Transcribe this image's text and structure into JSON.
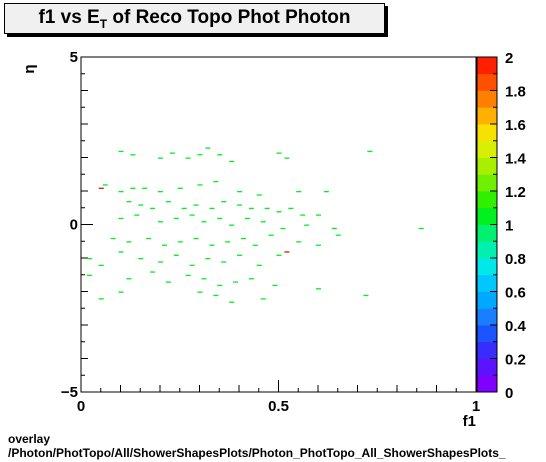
{
  "title": {
    "prefix": "f1 vs E",
    "sub": "T",
    "suffix": " of Reco Topo Phot Photon"
  },
  "footer": {
    "line1": "overlay",
    "line2": "/Photon/PhotTopo/All/ShowerShapesPlots/Photon_PhotTopo_All_ShowerShapesPlots_"
  },
  "chart_data": {
    "type": "heatmap",
    "title": "f1 vs E_T of Reco Topo Phot Photon",
    "xlabel": "f1",
    "ylabel": "η",
    "xlim": [
      0,
      1
    ],
    "ylim": [
      -5,
      5
    ],
    "x_ticks": [
      "0",
      "0.5",
      "1"
    ],
    "y_ticks": [
      "−5",
      "0",
      "5"
    ],
    "zlim": [
      0,
      2
    ],
    "z_ticks": [
      "0",
      "0.2",
      "0.4",
      "0.6",
      "0.8",
      "1",
      "1.2",
      "1.4",
      "1.6",
      "1.8",
      "2"
    ],
    "palette": [
      "#7f00ff",
      "#5a14ff",
      "#3a2bff",
      "#1a55ff",
      "#1a7fff",
      "#00a8ff",
      "#00c8ff",
      "#00e8e8",
      "#00f0b0",
      "#00f070",
      "#00f020",
      "#30f000",
      "#70f000",
      "#a8f000",
      "#d8f000",
      "#f8e000",
      "#ffb000",
      "#ff8000",
      "#ff5000",
      "#ff2000"
    ],
    "points": [
      {
        "x": 0.1,
        "y": 2.2,
        "z": 1
      },
      {
        "x": 0.13,
        "y": 2.1,
        "z": 1
      },
      {
        "x": 0.2,
        "y": 2.0,
        "z": 1
      },
      {
        "x": 0.23,
        "y": 2.15,
        "z": 1
      },
      {
        "x": 0.27,
        "y": 2.0,
        "z": 1
      },
      {
        "x": 0.3,
        "y": 2.1,
        "z": 1
      },
      {
        "x": 0.32,
        "y": 2.3,
        "z": 1
      },
      {
        "x": 0.35,
        "y": 2.1,
        "z": 1
      },
      {
        "x": 0.38,
        "y": 1.9,
        "z": 1
      },
      {
        "x": 0.5,
        "y": 2.15,
        "z": 1
      },
      {
        "x": 0.52,
        "y": 2.0,
        "z": 1
      },
      {
        "x": 0.73,
        "y": 2.2,
        "z": 1
      },
      {
        "x": 0.06,
        "y": 1.2,
        "z": 1
      },
      {
        "x": 0.1,
        "y": 1.0,
        "z": 1
      },
      {
        "x": 0.13,
        "y": 1.1,
        "z": 1
      },
      {
        "x": 0.16,
        "y": 1.1,
        "z": 1
      },
      {
        "x": 0.2,
        "y": 1.0,
        "z": 1
      },
      {
        "x": 0.25,
        "y": 1.1,
        "z": 1
      },
      {
        "x": 0.3,
        "y": 1.2,
        "z": 1
      },
      {
        "x": 0.34,
        "y": 1.3,
        "z": 1
      },
      {
        "x": 0.4,
        "y": 1.0,
        "z": 1
      },
      {
        "x": 0.45,
        "y": 0.9,
        "z": 1
      },
      {
        "x": 0.55,
        "y": 1.0,
        "z": 1
      },
      {
        "x": 0.62,
        "y": 1.0,
        "z": 1
      },
      {
        "x": 0.12,
        "y": 0.7,
        "z": 1
      },
      {
        "x": 0.15,
        "y": 0.6,
        "z": 1
      },
      {
        "x": 0.18,
        "y": 0.5,
        "z": 1
      },
      {
        "x": 0.22,
        "y": 0.7,
        "z": 1
      },
      {
        "x": 0.26,
        "y": 0.5,
        "z": 1
      },
      {
        "x": 0.29,
        "y": 0.6,
        "z": 1
      },
      {
        "x": 0.33,
        "y": 0.5,
        "z": 1
      },
      {
        "x": 0.36,
        "y": 0.7,
        "z": 1
      },
      {
        "x": 0.4,
        "y": 0.6,
        "z": 1
      },
      {
        "x": 0.43,
        "y": 0.5,
        "z": 1
      },
      {
        "x": 0.47,
        "y": 0.5,
        "z": 1
      },
      {
        "x": 0.5,
        "y": 0.4,
        "z": 1
      },
      {
        "x": 0.53,
        "y": 0.5,
        "z": 1
      },
      {
        "x": 0.56,
        "y": 0.3,
        "z": 1
      },
      {
        "x": 0.6,
        "y": 0.3,
        "z": 1
      },
      {
        "x": 0.1,
        "y": 0.2,
        "z": 1
      },
      {
        "x": 0.14,
        "y": 0.3,
        "z": 1
      },
      {
        "x": 0.2,
        "y": 0.1,
        "z": 1
      },
      {
        "x": 0.24,
        "y": 0.2,
        "z": 1
      },
      {
        "x": 0.28,
        "y": 0.3,
        "z": 1
      },
      {
        "x": 0.31,
        "y": 0.1,
        "z": 1
      },
      {
        "x": 0.35,
        "y": 0.2,
        "z": 1
      },
      {
        "x": 0.38,
        "y": 0.0,
        "z": 1
      },
      {
        "x": 0.42,
        "y": 0.2,
        "z": 1
      },
      {
        "x": 0.46,
        "y": 0.1,
        "z": 1
      },
      {
        "x": 0.51,
        "y": -0.1,
        "z": 1
      },
      {
        "x": 0.57,
        "y": 0.0,
        "z": 1
      },
      {
        "x": 0.64,
        "y": -0.1,
        "z": 1
      },
      {
        "x": 0.86,
        "y": -0.1,
        "z": 1
      },
      {
        "x": 0.08,
        "y": -0.4,
        "z": 1
      },
      {
        "x": 0.12,
        "y": -0.5,
        "z": 1
      },
      {
        "x": 0.17,
        "y": -0.4,
        "z": 1
      },
      {
        "x": 0.21,
        "y": -0.6,
        "z": 1
      },
      {
        "x": 0.25,
        "y": -0.5,
        "z": 1
      },
      {
        "x": 0.29,
        "y": -0.4,
        "z": 1
      },
      {
        "x": 0.33,
        "y": -0.6,
        "z": 1
      },
      {
        "x": 0.37,
        "y": -0.5,
        "z": 1
      },
      {
        "x": 0.41,
        "y": -0.4,
        "z": 1
      },
      {
        "x": 0.44,
        "y": -0.6,
        "z": 1
      },
      {
        "x": 0.48,
        "y": -0.3,
        "z": 1
      },
      {
        "x": 0.55,
        "y": -0.5,
        "z": 1
      },
      {
        "x": 0.6,
        "y": -0.6,
        "z": 1
      },
      {
        "x": 0.65,
        "y": -0.3,
        "z": 1
      },
      {
        "x": 0.02,
        "y": -1.0,
        "z": 1
      },
      {
        "x": 0.05,
        "y": -1.2,
        "z": 1
      },
      {
        "x": 0.1,
        "y": -0.8,
        "z": 1
      },
      {
        "x": 0.15,
        "y": -1.0,
        "z": 1
      },
      {
        "x": 0.2,
        "y": -1.1,
        "z": 1
      },
      {
        "x": 0.24,
        "y": -0.9,
        "z": 1
      },
      {
        "x": 0.28,
        "y": -1.2,
        "z": 1
      },
      {
        "x": 0.32,
        "y": -1.0,
        "z": 1
      },
      {
        "x": 0.36,
        "y": -1.1,
        "z": 1
      },
      {
        "x": 0.4,
        "y": -0.9,
        "z": 1
      },
      {
        "x": 0.45,
        "y": -1.2,
        "z": 1
      },
      {
        "x": 0.5,
        "y": -0.9,
        "z": 1
      },
      {
        "x": 0.02,
        "y": -1.5,
        "z": 1
      },
      {
        "x": 0.12,
        "y": -1.6,
        "z": 1
      },
      {
        "x": 0.18,
        "y": -1.4,
        "z": 1
      },
      {
        "x": 0.22,
        "y": -1.7,
        "z": 1
      },
      {
        "x": 0.27,
        "y": -1.5,
        "z": 1
      },
      {
        "x": 0.31,
        "y": -1.6,
        "z": 1
      },
      {
        "x": 0.35,
        "y": -1.8,
        "z": 1
      },
      {
        "x": 0.39,
        "y": -1.7,
        "z": 1
      },
      {
        "x": 0.43,
        "y": -1.6,
        "z": 1
      },
      {
        "x": 0.49,
        "y": -1.8,
        "z": 1
      },
      {
        "x": 0.6,
        "y": -1.9,
        "z": 1
      },
      {
        "x": 0.05,
        "y": -2.2,
        "z": 1
      },
      {
        "x": 0.1,
        "y": -2.0,
        "z": 1
      },
      {
        "x": 0.3,
        "y": -2.0,
        "z": 1
      },
      {
        "x": 0.34,
        "y": -2.1,
        "z": 1
      },
      {
        "x": 0.38,
        "y": -2.3,
        "z": 1
      },
      {
        "x": 0.46,
        "y": -2.2,
        "z": 1
      },
      {
        "x": 0.72,
        "y": -2.1,
        "z": 1
      },
      {
        "x": 0.05,
        "y": 1.1,
        "z": 2
      },
      {
        "x": 0.52,
        "y": -0.8,
        "z": 2
      }
    ]
  }
}
